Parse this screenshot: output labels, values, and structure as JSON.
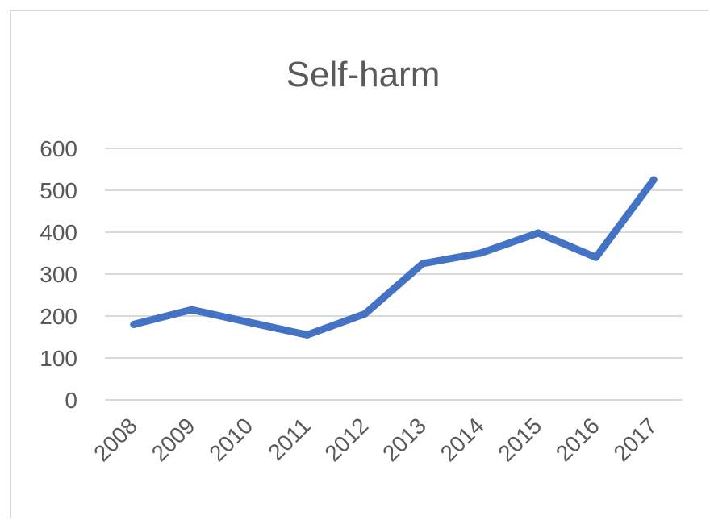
{
  "chart_data": {
    "type": "line",
    "title": "Self-harm",
    "xlabel": "",
    "ylabel": "",
    "categories": [
      "2008",
      "2009",
      "2010",
      "2011",
      "2012",
      "2013",
      "2014",
      "2015",
      "2016",
      "2017"
    ],
    "series": [
      {
        "values": [
          180,
          215,
          185,
          155,
          205,
          325,
          350,
          398,
          340,
          525
        ]
      }
    ],
    "ylim": [
      0,
      600
    ],
    "yticks": [
      "0",
      "100",
      "200",
      "300",
      "400",
      "500",
      "600"
    ],
    "grid": true,
    "legend": "none",
    "colors": {
      "line": "#4472c4",
      "grid": "#d9d9d9",
      "text": "#595959"
    }
  }
}
